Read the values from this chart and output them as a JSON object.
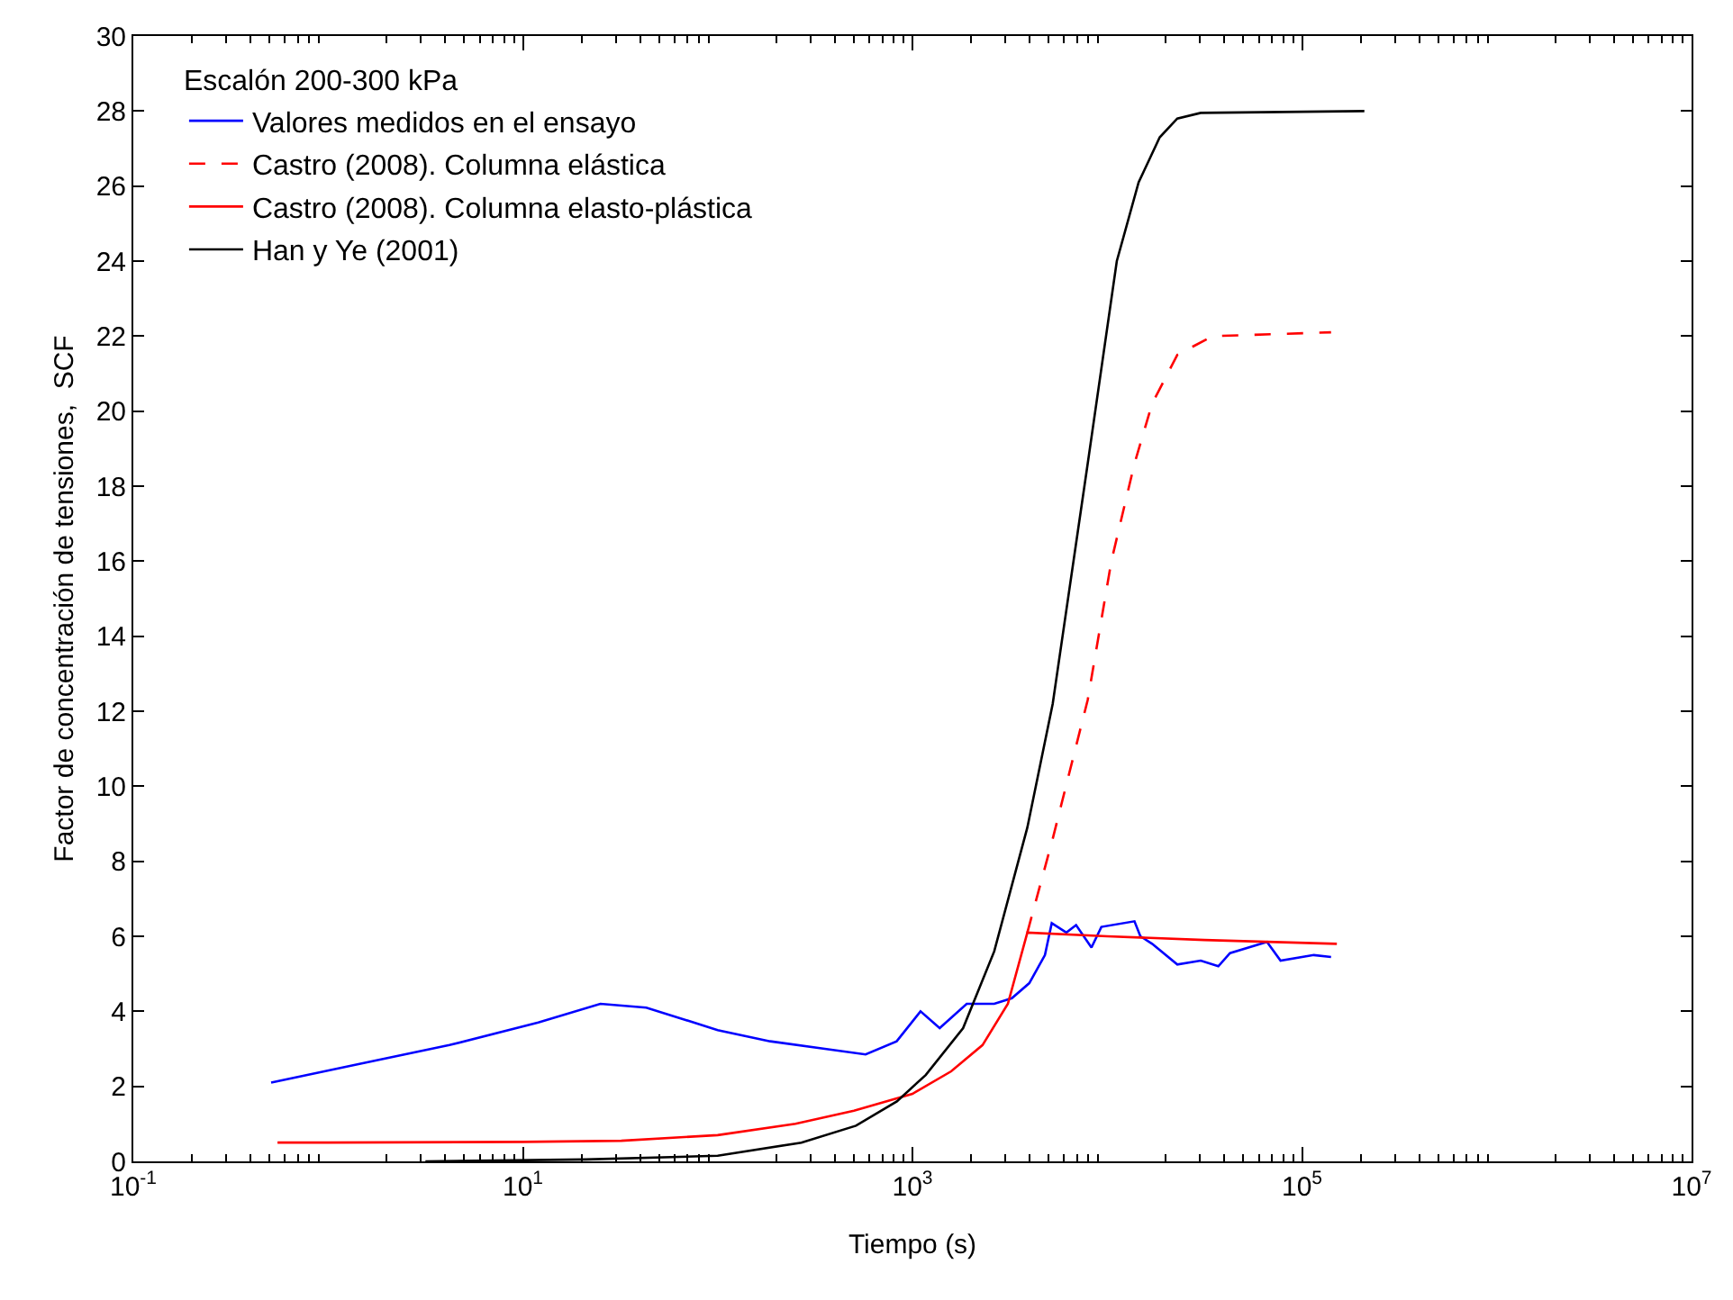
{
  "chart_data": {
    "type": "line",
    "xlabel": "Tiempo (s)",
    "ylabel": "Factor de concentración de tensiones,  SCF",
    "legend_title": "Escalón 200-300 kPa",
    "legend": "top left",
    "marker": "none",
    "log": "x",
    "xlim": [
      0.1,
      10000000
    ],
    "xticks": [
      {
        "value": 0.1,
        "label": "10$^{-1}$"
      },
      {
        "value": 10,
        "label": "10$^{1}$"
      },
      {
        "value": 1000,
        "label": "10$^{3}$"
      },
      {
        "value": 100000,
        "label": "10$^{5}$"
      },
      {
        "value": 10000000,
        "label": "10$^{7}$"
      }
    ],
    "ylim": [
      0,
      30
    ],
    "yticks": [
      0,
      2,
      4,
      6,
      8,
      10,
      12,
      14,
      16,
      18,
      20,
      22,
      24,
      26,
      28,
      30
    ],
    "series": [
      {
        "name": "Valores medidos en el ensayo",
        "color": "#0000ff",
        "line_style": "solid",
        "x": [
          0.51,
          1.45,
          4.2,
          12,
          25,
          43,
          100,
          186,
          355,
          575,
          830,
          1100,
          1380,
          1900,
          2630,
          3240,
          3980,
          4790,
          5190,
          6170,
          6920,
          8300,
          9330,
          13800,
          14800,
          17000,
          22900,
          30200,
          37200,
          42700,
          66100,
          77600,
          115000,
          141000
        ],
        "values": [
          2.1,
          2.6,
          3.1,
          3.7,
          4.2,
          4.1,
          3.5,
          3.2,
          3.0,
          2.85,
          3.2,
          4.0,
          3.55,
          4.2,
          4.2,
          4.35,
          4.75,
          5.5,
          6.35,
          6.1,
          6.3,
          5.7,
          6.25,
          6.4,
          6.0,
          5.8,
          5.25,
          5.35,
          5.2,
          5.55,
          5.85,
          5.35,
          5.5,
          5.45
        ]
      },
      {
        "name": "Castro (2008). Columna elástica",
        "color": "#ff0000",
        "line_style": "dashed",
        "x": [
          3890,
          5250,
          7940,
          10500,
          13800,
          17000,
          22900,
          34700,
          141000
        ],
        "values": [
          6.1,
          8.6,
          12.3,
          16.0,
          18.6,
          20.2,
          21.5,
          22.0,
          22.1
        ]
      },
      {
        "name": "Castro (2008). Columna elasto-plástica",
        "color": "#ff0000",
        "line_style": "solid",
        "x": [
          0.55,
          1,
          10,
          32,
          100,
          251,
          501,
          1000,
          1580,
          2290,
          3090,
          3890,
          10000,
          31600,
          151000
        ],
        "values": [
          0.5,
          0.5,
          0.52,
          0.55,
          0.7,
          1.0,
          1.35,
          1.8,
          2.4,
          3.1,
          4.2,
          6.1,
          6.0,
          5.9,
          5.8
        ]
      },
      {
        "name": "Han y Ye (2001)",
        "color": "#000000",
        "line_style": "solid",
        "x": [
          3.16,
          21,
          100,
          269,
          513,
          832,
          1170,
          1820,
          2630,
          3890,
          5250,
          7940,
          11200,
          14500,
          18600,
          22900,
          30200,
          209000
        ],
        "values": [
          0,
          0.05,
          0.15,
          0.5,
          0.95,
          1.6,
          2.3,
          3.55,
          5.6,
          8.9,
          12.2,
          18.6,
          24.0,
          26.1,
          27.3,
          27.8,
          27.95,
          28.0
        ]
      }
    ]
  }
}
